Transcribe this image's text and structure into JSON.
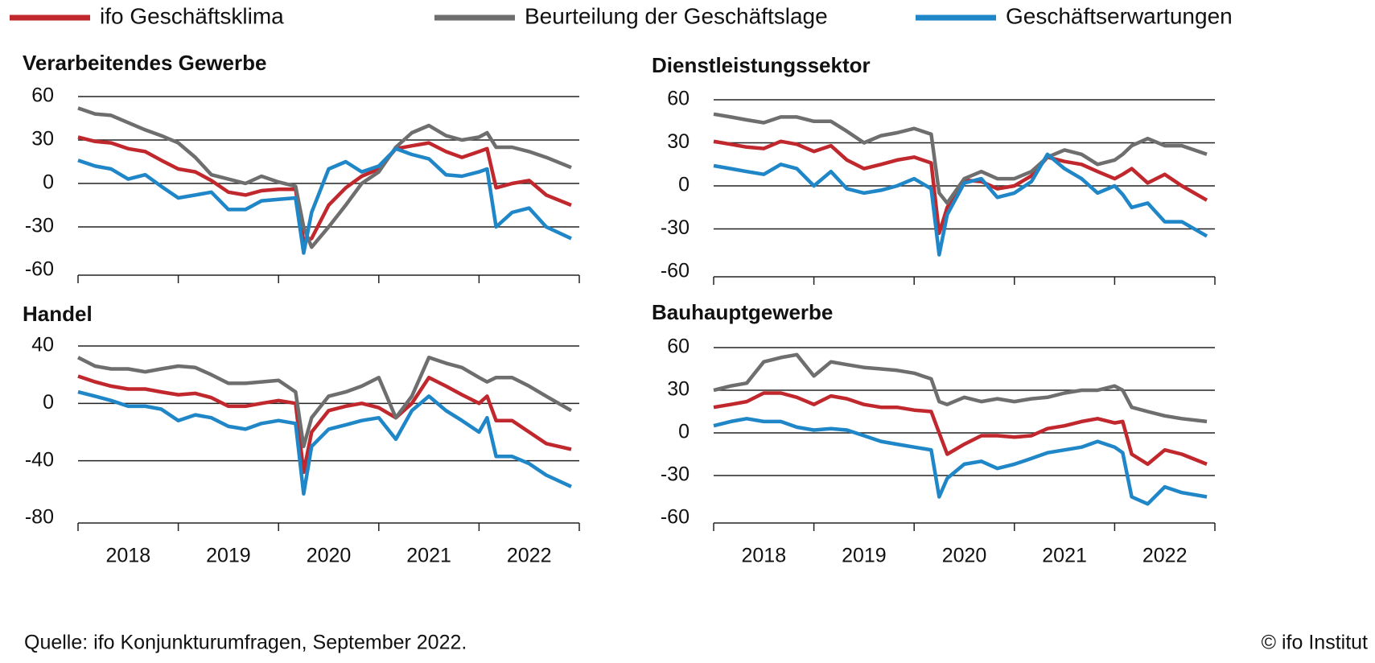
{
  "source": "Quelle:  ifo Konjunkturumfragen,  September  2022.",
  "copyright": "© ifo Institut",
  "chart_data": [
    {
      "type": "line",
      "title": "Verarbeitendes Gewerbe",
      "x": [
        2018.0,
        2018.17,
        2018.33,
        2018.5,
        2018.67,
        2018.83,
        2019.0,
        2019.17,
        2019.33,
        2019.5,
        2019.67,
        2019.83,
        2020.0,
        2020.17,
        2020.25,
        2020.33,
        2020.5,
        2020.67,
        2020.83,
        2021.0,
        2021.17,
        2021.33,
        2021.5,
        2021.67,
        2021.83,
        2022.0,
        2022.08,
        2022.17,
        2022.33,
        2022.5,
        2022.67,
        2022.92
      ],
      "xlim": [
        2018,
        2023
      ],
      "xticks": [
        2018,
        2019,
        2020,
        2021,
        2022,
        2023
      ],
      "ylim": [
        -60,
        60
      ],
      "yticks": [
        -60,
        -30,
        0,
        30,
        60
      ],
      "grid": true,
      "series": [
        {
          "name": "ifo Geschäftsklima",
          "color": "#c0282d",
          "values": [
            32,
            29,
            28,
            24,
            22,
            16,
            10,
            8,
            2,
            -6,
            -8,
            -5,
            -4,
            -4,
            -40,
            -38,
            -15,
            -3,
            5,
            10,
            24,
            26,
            28,
            22,
            18,
            22,
            24,
            -3,
            0,
            2,
            -8,
            -15
          ]
        },
        {
          "name": "Beurteilung der Geschäftslage",
          "color": "#6e6e6e",
          "values": [
            52,
            48,
            47,
            42,
            37,
            33,
            28,
            18,
            6,
            3,
            0,
            5,
            1,
            -2,
            -30,
            -44,
            -30,
            -15,
            0,
            8,
            25,
            35,
            40,
            33,
            30,
            32,
            35,
            25,
            25,
            22,
            18,
            11
          ]
        },
        {
          "name": "Geschäftserwartungen",
          "color": "#1f86c8",
          "values": [
            16,
            12,
            10,
            3,
            6,
            -2,
            -10,
            -8,
            -6,
            -18,
            -18,
            -12,
            -11,
            -10,
            -48,
            -20,
            10,
            15,
            8,
            12,
            24,
            20,
            17,
            6,
            5,
            8,
            10,
            -30,
            -20,
            -17,
            -30,
            -38
          ]
        }
      ]
    },
    {
      "type": "line",
      "title": "Dienstleistungssektor",
      "x": [
        2018.0,
        2018.17,
        2018.33,
        2018.5,
        2018.67,
        2018.83,
        2019.0,
        2019.17,
        2019.33,
        2019.5,
        2019.67,
        2019.83,
        2020.0,
        2020.17,
        2020.25,
        2020.33,
        2020.5,
        2020.67,
        2020.83,
        2021.0,
        2021.17,
        2021.33,
        2021.5,
        2021.67,
        2021.83,
        2022.0,
        2022.08,
        2022.17,
        2022.33,
        2022.5,
        2022.67,
        2022.92
      ],
      "xlim": [
        2018,
        2023
      ],
      "xticks": [
        2018,
        2019,
        2020,
        2021,
        2022,
        2023
      ],
      "ylim": [
        -60,
        60
      ],
      "yticks": [
        -60,
        -30,
        0,
        30,
        60
      ],
      "grid": true,
      "series": [
        {
          "color": "#c0282d",
          "values": [
            31,
            29,
            27,
            26,
            31,
            29,
            24,
            28,
            18,
            12,
            15,
            18,
            20,
            16,
            -33,
            -15,
            4,
            3,
            -2,
            0,
            7,
            20,
            17,
            15,
            10,
            5,
            8,
            12,
            2,
            8,
            0,
            -10
          ]
        },
        {
          "color": "#6e6e6e",
          "values": [
            50,
            48,
            46,
            44,
            48,
            48,
            45,
            45,
            38,
            30,
            35,
            37,
            40,
            36,
            -5,
            -12,
            5,
            10,
            5,
            5,
            10,
            20,
            25,
            22,
            15,
            18,
            22,
            28,
            33,
            28,
            28,
            22
          ]
        },
        {
          "color": "#1f86c8",
          "values": [
            14,
            12,
            10,
            8,
            15,
            12,
            0,
            10,
            -2,
            -5,
            -3,
            0,
            5,
            -2,
            -48,
            -20,
            2,
            5,
            -8,
            -5,
            3,
            22,
            12,
            5,
            -5,
            0,
            -6,
            -15,
            -12,
            -25,
            -25,
            -35
          ]
        }
      ]
    },
    {
      "type": "line",
      "title": "Handel",
      "x": [
        2018.0,
        2018.17,
        2018.33,
        2018.5,
        2018.67,
        2018.83,
        2019.0,
        2019.17,
        2019.33,
        2019.5,
        2019.67,
        2019.83,
        2020.0,
        2020.17,
        2020.25,
        2020.33,
        2020.5,
        2020.67,
        2020.83,
        2021.0,
        2021.17,
        2021.33,
        2021.5,
        2021.67,
        2021.83,
        2022.0,
        2022.08,
        2022.17,
        2022.33,
        2022.5,
        2022.67,
        2022.92
      ],
      "xlim": [
        2018,
        2023
      ],
      "xticks": [
        2018,
        2019,
        2020,
        2021,
        2022,
        2023
      ],
      "year_labels": [
        "2018",
        "2019",
        "2020",
        "2021",
        "2022"
      ],
      "ylim": [
        -80,
        40
      ],
      "yticks": [
        -80,
        -40,
        0,
        40
      ],
      "grid": true,
      "series": [
        {
          "color": "#c0282d",
          "values": [
            19,
            15,
            12,
            10,
            10,
            8,
            6,
            7,
            4,
            -2,
            -2,
            0,
            2,
            0,
            -48,
            -20,
            -5,
            -2,
            0,
            -3,
            -10,
            0,
            18,
            12,
            6,
            0,
            5,
            -12,
            -12,
            -20,
            -28,
            -32
          ]
        },
        {
          "color": "#6e6e6e",
          "values": [
            32,
            26,
            24,
            24,
            22,
            24,
            26,
            25,
            20,
            14,
            14,
            15,
            16,
            8,
            -30,
            -10,
            5,
            8,
            12,
            18,
            -10,
            5,
            32,
            28,
            25,
            18,
            15,
            18,
            18,
            12,
            5,
            -5
          ]
        },
        {
          "color": "#1f86c8",
          "values": [
            8,
            5,
            2,
            -2,
            -2,
            -4,
            -12,
            -8,
            -10,
            -16,
            -18,
            -14,
            -12,
            -14,
            -63,
            -30,
            -18,
            -15,
            -12,
            -10,
            -25,
            -5,
            5,
            -5,
            -12,
            -20,
            -10,
            -37,
            -37,
            -42,
            -50,
            -58
          ]
        }
      ]
    },
    {
      "type": "line",
      "title": "Bauhauptgewerbe",
      "x": [
        2018.0,
        2018.17,
        2018.33,
        2018.5,
        2018.67,
        2018.83,
        2019.0,
        2019.17,
        2019.33,
        2019.5,
        2019.67,
        2019.83,
        2020.0,
        2020.17,
        2020.25,
        2020.33,
        2020.5,
        2020.67,
        2020.83,
        2021.0,
        2021.17,
        2021.33,
        2021.5,
        2021.67,
        2021.83,
        2022.0,
        2022.08,
        2022.17,
        2022.33,
        2022.5,
        2022.67,
        2022.92
      ],
      "xlim": [
        2018,
        2023
      ],
      "xticks": [
        2018,
        2019,
        2020,
        2021,
        2022,
        2023
      ],
      "year_labels": [
        "2018",
        "2019",
        "2020",
        "2021",
        "2022"
      ],
      "ylim": [
        -60,
        60
      ],
      "yticks": [
        -60,
        -30,
        0,
        30,
        60
      ],
      "grid": true,
      "series": [
        {
          "color": "#c0282d",
          "values": [
            18,
            20,
            22,
            28,
            28,
            25,
            20,
            26,
            24,
            20,
            18,
            18,
            16,
            15,
            0,
            -15,
            -8,
            -2,
            -2,
            -3,
            -2,
            3,
            5,
            8,
            10,
            7,
            8,
            -15,
            -22,
            -12,
            -15,
            -22
          ]
        },
        {
          "color": "#6e6e6e",
          "values": [
            30,
            33,
            35,
            50,
            53,
            55,
            40,
            50,
            48,
            46,
            45,
            44,
            42,
            38,
            22,
            20,
            25,
            22,
            24,
            22,
            24,
            25,
            28,
            30,
            30,
            33,
            30,
            18,
            15,
            12,
            10,
            8
          ]
        },
        {
          "color": "#1f86c8",
          "values": [
            5,
            8,
            10,
            8,
            8,
            4,
            2,
            3,
            2,
            -2,
            -6,
            -8,
            -10,
            -12,
            -45,
            -32,
            -22,
            -20,
            -25,
            -22,
            -18,
            -14,
            -12,
            -10,
            -6,
            -10,
            -14,
            -45,
            -50,
            -38,
            -42,
            -45
          ]
        }
      ]
    }
  ]
}
